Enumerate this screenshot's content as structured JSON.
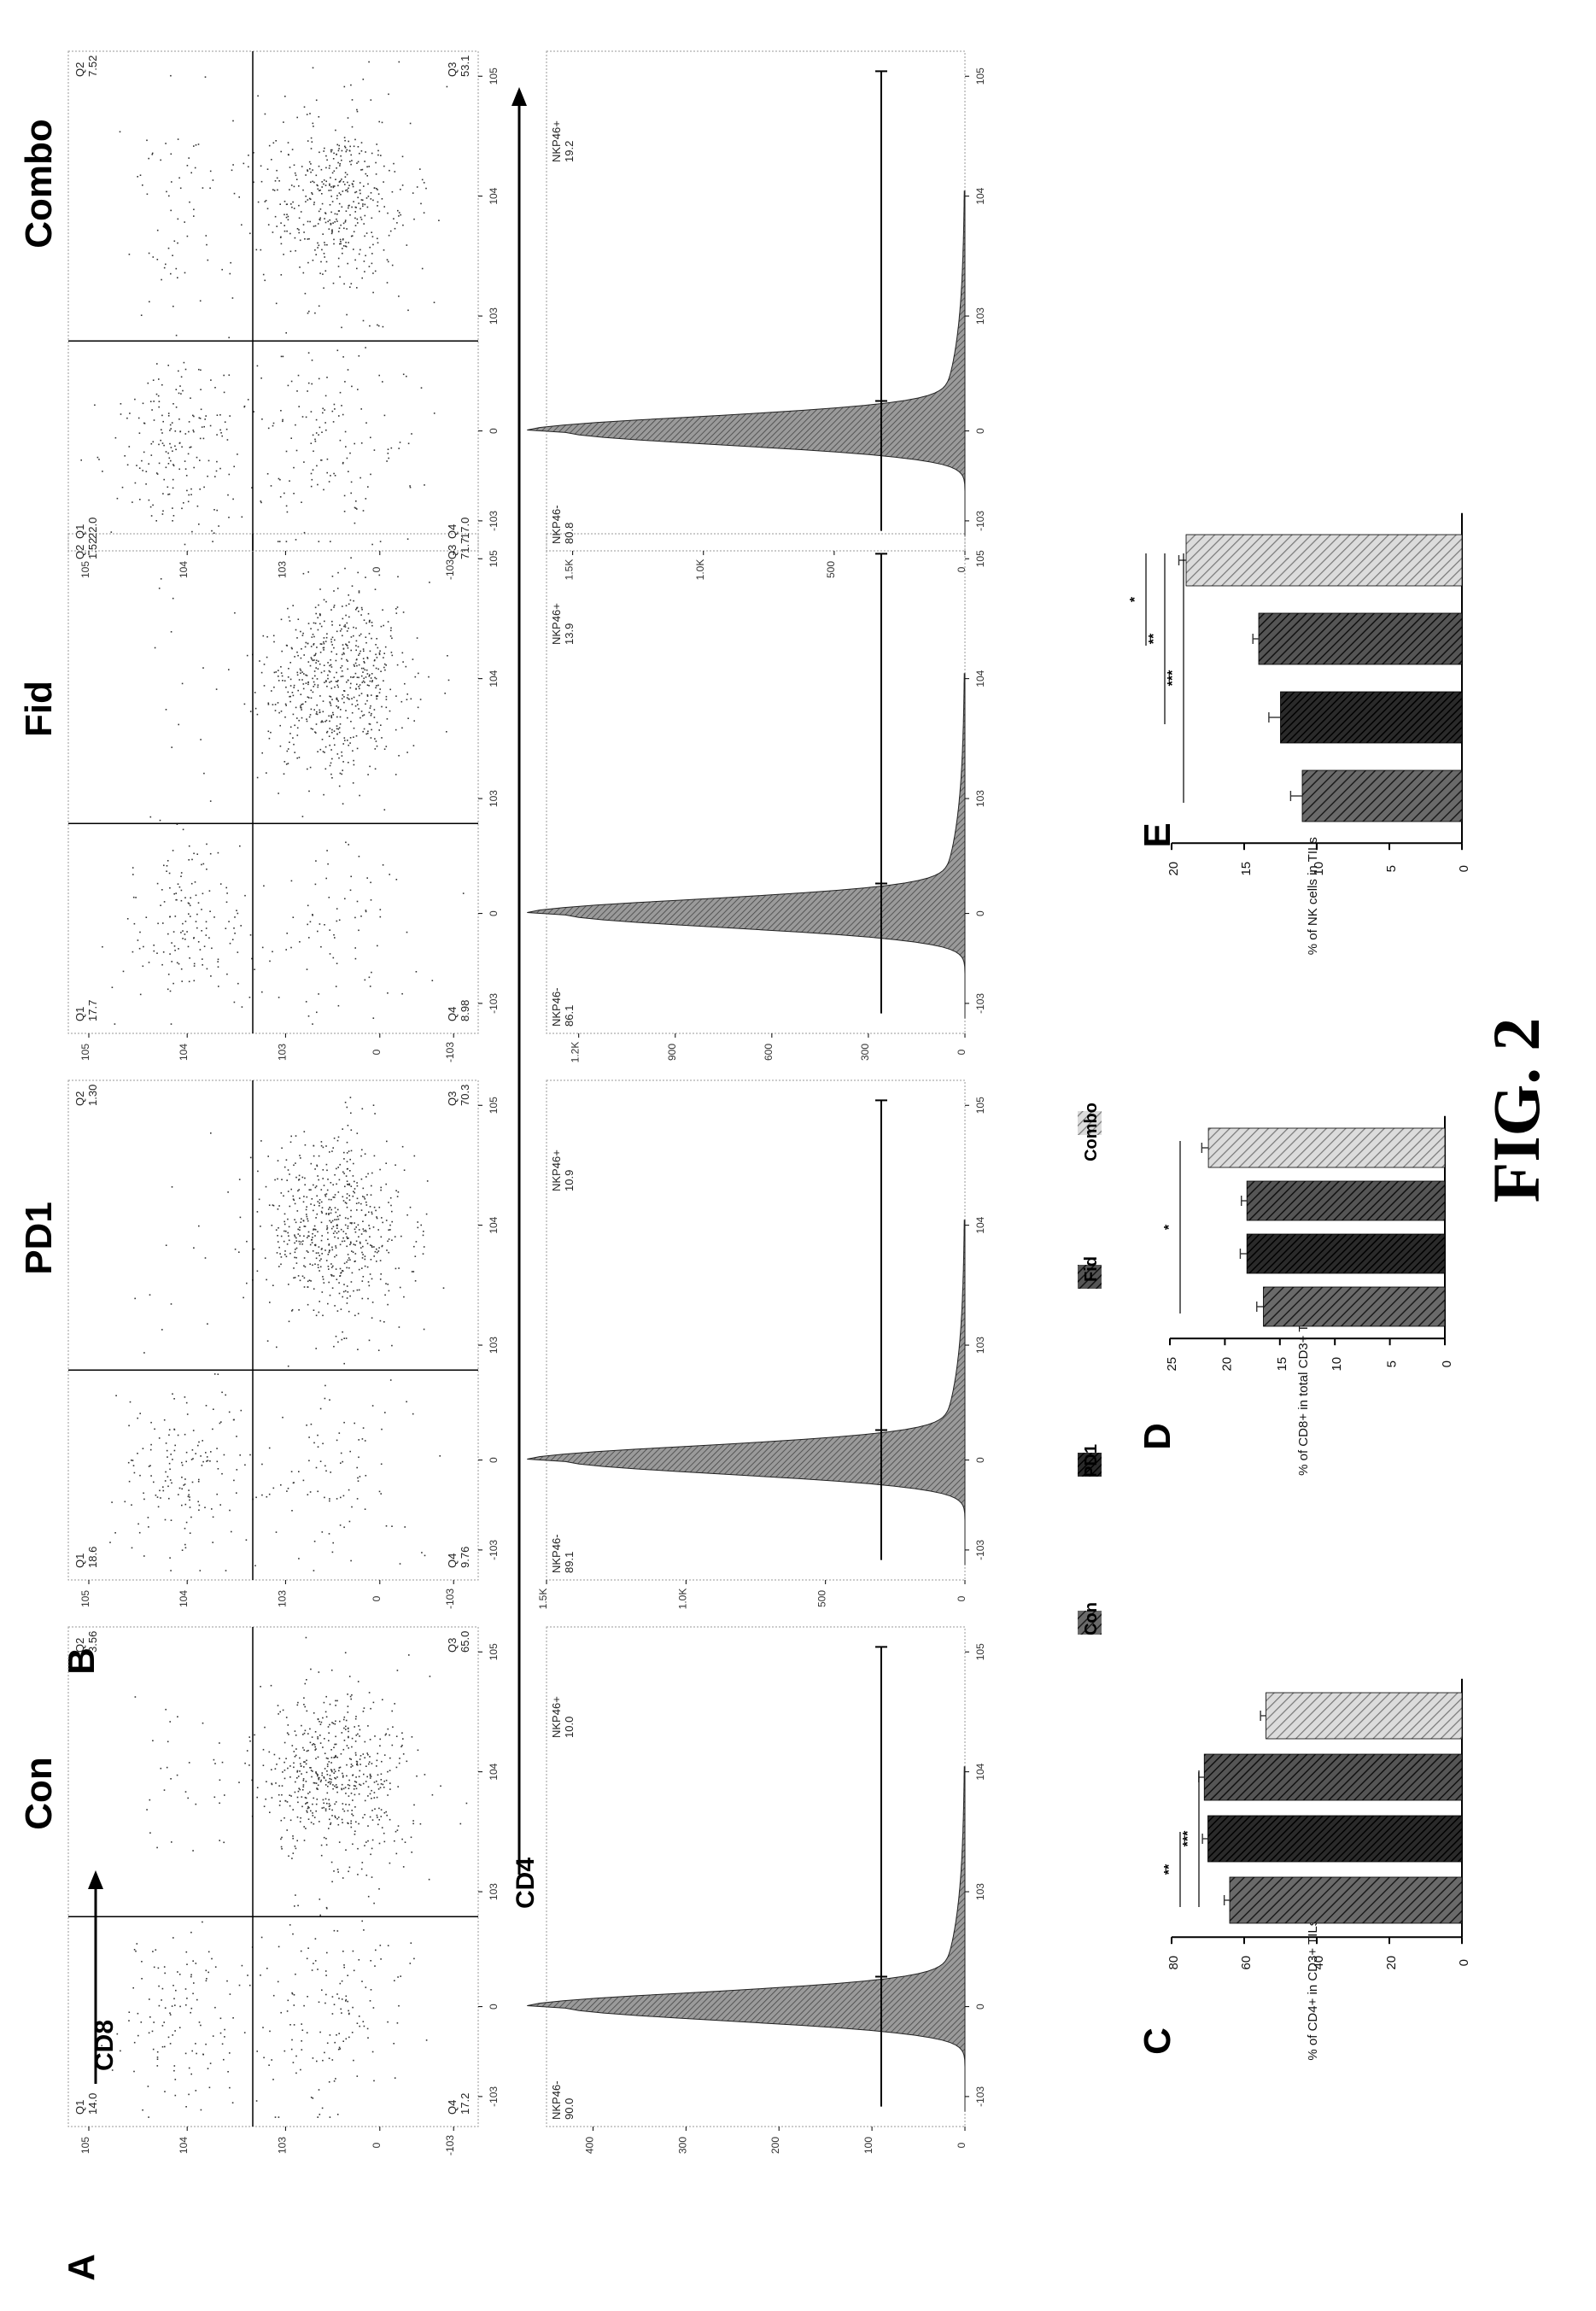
{
  "figure": {
    "title": "FIG. 2",
    "groups": [
      "Con",
      "PD1",
      "Fid",
      "Combo"
    ],
    "panel_letters": {
      "A": "A",
      "B": "B",
      "C": "C",
      "D": "D",
      "E": "E"
    },
    "axis_labels": {
      "cd8": "CD8",
      "cd4": "CD4"
    },
    "legend": {
      "items": [
        "Con",
        "PD1",
        "Fid",
        "Combo"
      ]
    }
  },
  "chart_data": [
    {
      "type": "scatter",
      "panel": "A",
      "xlabel": "CD4",
      "ylabel": "CD8",
      "x_ticks": [
        "-10^3",
        "0",
        "10^3",
        "10^4",
        "10^5"
      ],
      "y_ticks": [
        "-10^3",
        "0",
        "10^3",
        "10^4",
        "10^5"
      ],
      "plots": [
        {
          "group": "Con",
          "quadrants": {
            "Q1": {
              "label": "Q1",
              "value": "14.0"
            },
            "Q2": {
              "label": "Q2",
              "value": "3.56"
            },
            "Q3": {
              "label": "Q3",
              "value": "65.0"
            },
            "Q4": {
              "label": "Q4",
              "value": "17.2"
            }
          }
        },
        {
          "group": "PD1",
          "quadrants": {
            "Q1": {
              "label": "Q1",
              "value": "18.6"
            },
            "Q2": {
              "label": "Q2",
              "value": "1.30"
            },
            "Q3": {
              "label": "Q3",
              "value": "70.3"
            },
            "Q4": {
              "label": "Q4",
              "value": "9.76"
            }
          }
        },
        {
          "group": "Fid",
          "quadrants": {
            "Q1": {
              "label": "Q1",
              "value": "17.7"
            },
            "Q2": {
              "label": "Q2",
              "value": "1.52"
            },
            "Q3": {
              "label": "Q3",
              "value": "71.7"
            },
            "Q4": {
              "label": "Q4",
              "value": "8.98"
            }
          }
        },
        {
          "group": "Combo",
          "quadrants": {
            "Q1": {
              "label": "Q1",
              "value": "22.0"
            },
            "Q2": {
              "label": "Q2",
              "value": "7.52"
            },
            "Q3": {
              "label": "Q3",
              "value": "53.1"
            },
            "Q4": {
              "label": "Q4",
              "value": "17.0"
            }
          }
        }
      ]
    },
    {
      "type": "area",
      "panel": "B",
      "x_ticks": [
        "-10^3",
        "0",
        "10^3",
        "10^4",
        "10^5"
      ],
      "plots": [
        {
          "group": "Con",
          "y_ticks": [
            "0",
            "100",
            "200",
            "300",
            "400"
          ],
          "ymax": 450,
          "gate_neg": {
            "label": "NKP46-",
            "value": "90.0"
          },
          "gate_pos": {
            "label": "NKP46+",
            "value": "10.0"
          }
        },
        {
          "group": "PD1",
          "y_ticks": [
            "0",
            "500",
            "1.0K",
            "1.5K"
          ],
          "ymax": 1500,
          "gate_neg": {
            "label": "NKP46-",
            "value": "89.1"
          },
          "gate_pos": {
            "label": "NKP46+",
            "value": "10.9"
          }
        },
        {
          "group": "Fid",
          "y_ticks": [
            "0",
            "300",
            "600",
            "900",
            "1.2K"
          ],
          "ymax": 1300,
          "gate_neg": {
            "label": "NKP46-",
            "value": "86.1"
          },
          "gate_pos": {
            "label": "NKP46+",
            "value": "13.9"
          }
        },
        {
          "group": "Combo",
          "y_ticks": [
            "0",
            "500",
            "1.0K",
            "1.5K"
          ],
          "ymax": 1600,
          "gate_neg": {
            "label": "NKP46-",
            "value": "80.8"
          },
          "gate_pos": {
            "label": "NKP46+",
            "value": "19.2"
          }
        }
      ]
    },
    {
      "type": "bar",
      "panel": "C",
      "ylabel": "% of CD4+ in CD3+ TILs",
      "categories": [
        "Con",
        "PD1",
        "Fid",
        "Combo"
      ],
      "values": [
        64,
        70,
        71,
        54
      ],
      "errors": [
        1.5,
        1.5,
        1.5,
        1.5
      ],
      "ylim": [
        0,
        80
      ],
      "y_ticks": [
        0,
        20,
        40,
        60,
        80
      ],
      "significance": [
        {
          "pair": [
            0,
            1
          ],
          "label": "**"
        },
        {
          "pair": [
            0,
            2
          ],
          "label": "***"
        }
      ]
    },
    {
      "type": "bar",
      "panel": "D",
      "ylabel": "% of CD8+ in total CD3+ TILs",
      "categories": [
        "Con",
        "PD1",
        "Fid",
        "Combo"
      ],
      "values": [
        16.5,
        18,
        18,
        21.5
      ],
      "errors": [
        0.6,
        0.6,
        0.5,
        0.6
      ],
      "ylim": [
        0,
        25
      ],
      "y_ticks": [
        0,
        5,
        10,
        15,
        20,
        25
      ],
      "significance": [
        {
          "pair": [
            0,
            3
          ],
          "label": "*"
        }
      ]
    },
    {
      "type": "bar",
      "panel": "E",
      "ylabel": "% of NK cells in TILs",
      "categories": [
        "Con",
        "PD1",
        "Fid",
        "Combo"
      ],
      "values": [
        11,
        12.5,
        14,
        19
      ],
      "errors": [
        0.8,
        0.8,
        0.4,
        0.5
      ],
      "ylim": [
        0,
        20
      ],
      "y_ticks": [
        0,
        5,
        10,
        15,
        20
      ],
      "significance": [
        {
          "pair": [
            2,
            3
          ],
          "label": "*"
        },
        {
          "pair": [
            1,
            3
          ],
          "label": "**"
        },
        {
          "pair": [
            0,
            3
          ],
          "label": "***"
        }
      ]
    }
  ]
}
